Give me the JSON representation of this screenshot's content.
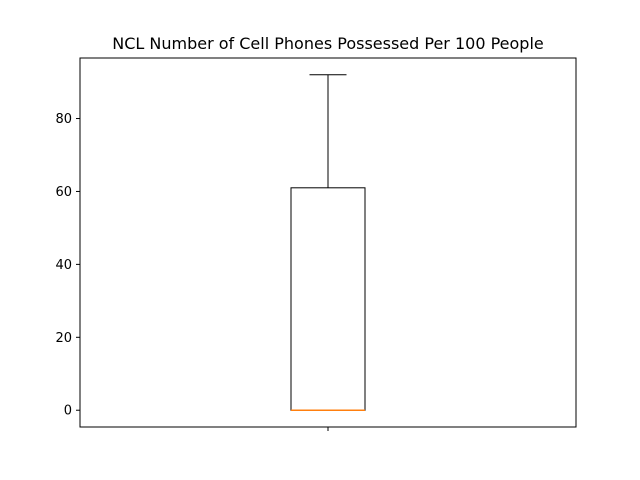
{
  "chart_data": {
    "type": "box",
    "title": "NCL Number of Cell Phones Possessed Per 100 People",
    "xlabel": "",
    "ylabel": "",
    "ylim": [
      -4.6,
      96.6
    ],
    "yticks": [
      0,
      20,
      40,
      60,
      80
    ],
    "grid": false,
    "series": [
      {
        "whisker_low": 0,
        "q1": 0,
        "median": 0,
        "q3": 61,
        "whisker_high": 92
      }
    ],
    "colors": {
      "box": "#000000",
      "median": "#ff7f0e",
      "axes": "#000000"
    }
  }
}
